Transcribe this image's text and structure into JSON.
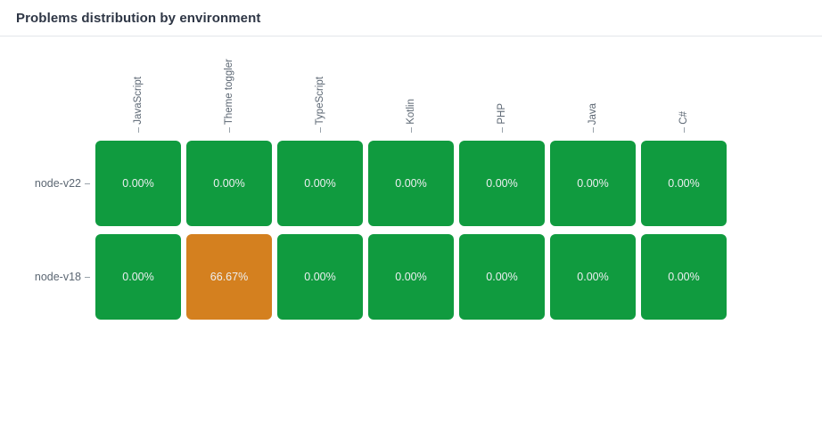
{
  "header": {
    "title": "Problems distribution by environment"
  },
  "colors": {
    "green_cell": "#109b3f",
    "orange_cell": "#d4801f",
    "title_text": "#2e3645",
    "axis_label": "#5c6773",
    "cell_text": "#edeff1",
    "divider": "#e2e6ea",
    "tick": "#9aa3ab"
  },
  "chart_data": {
    "type": "heatmap",
    "title": "Problems distribution by environment",
    "categories": [
      "JavaScript",
      "Theme toggler",
      "TypeScript",
      "Kotlin",
      "PHP",
      "Java",
      "C#"
    ],
    "rows": [
      "node-v22",
      "node-v18"
    ],
    "series": [
      {
        "name": "node-v22",
        "values": [
          0,
          0,
          0,
          0,
          0,
          0,
          0
        ]
      },
      {
        "name": "node-v18",
        "values": [
          0,
          66.67,
          0,
          0,
          0,
          0,
          0
        ]
      }
    ],
    "display": [
      [
        "0.00%",
        "0.00%",
        "0.00%",
        "0.00%",
        "0.00%",
        "0.00%",
        "0.00%"
      ],
      [
        "0.00%",
        "66.67%",
        "0.00%",
        "0.00%",
        "0.00%",
        "0.00%",
        "0.00%"
      ]
    ],
    "cell_colors": [
      [
        "#109b3f",
        "#109b3f",
        "#109b3f",
        "#109b3f",
        "#109b3f",
        "#109b3f",
        "#109b3f"
      ],
      [
        "#109b3f",
        "#d4801f",
        "#109b3f",
        "#109b3f",
        "#109b3f",
        "#109b3f",
        "#109b3f"
      ]
    ],
    "value_unit": "%",
    "legend": "none",
    "grid": "off",
    "x_labels_rotation": -90
  }
}
